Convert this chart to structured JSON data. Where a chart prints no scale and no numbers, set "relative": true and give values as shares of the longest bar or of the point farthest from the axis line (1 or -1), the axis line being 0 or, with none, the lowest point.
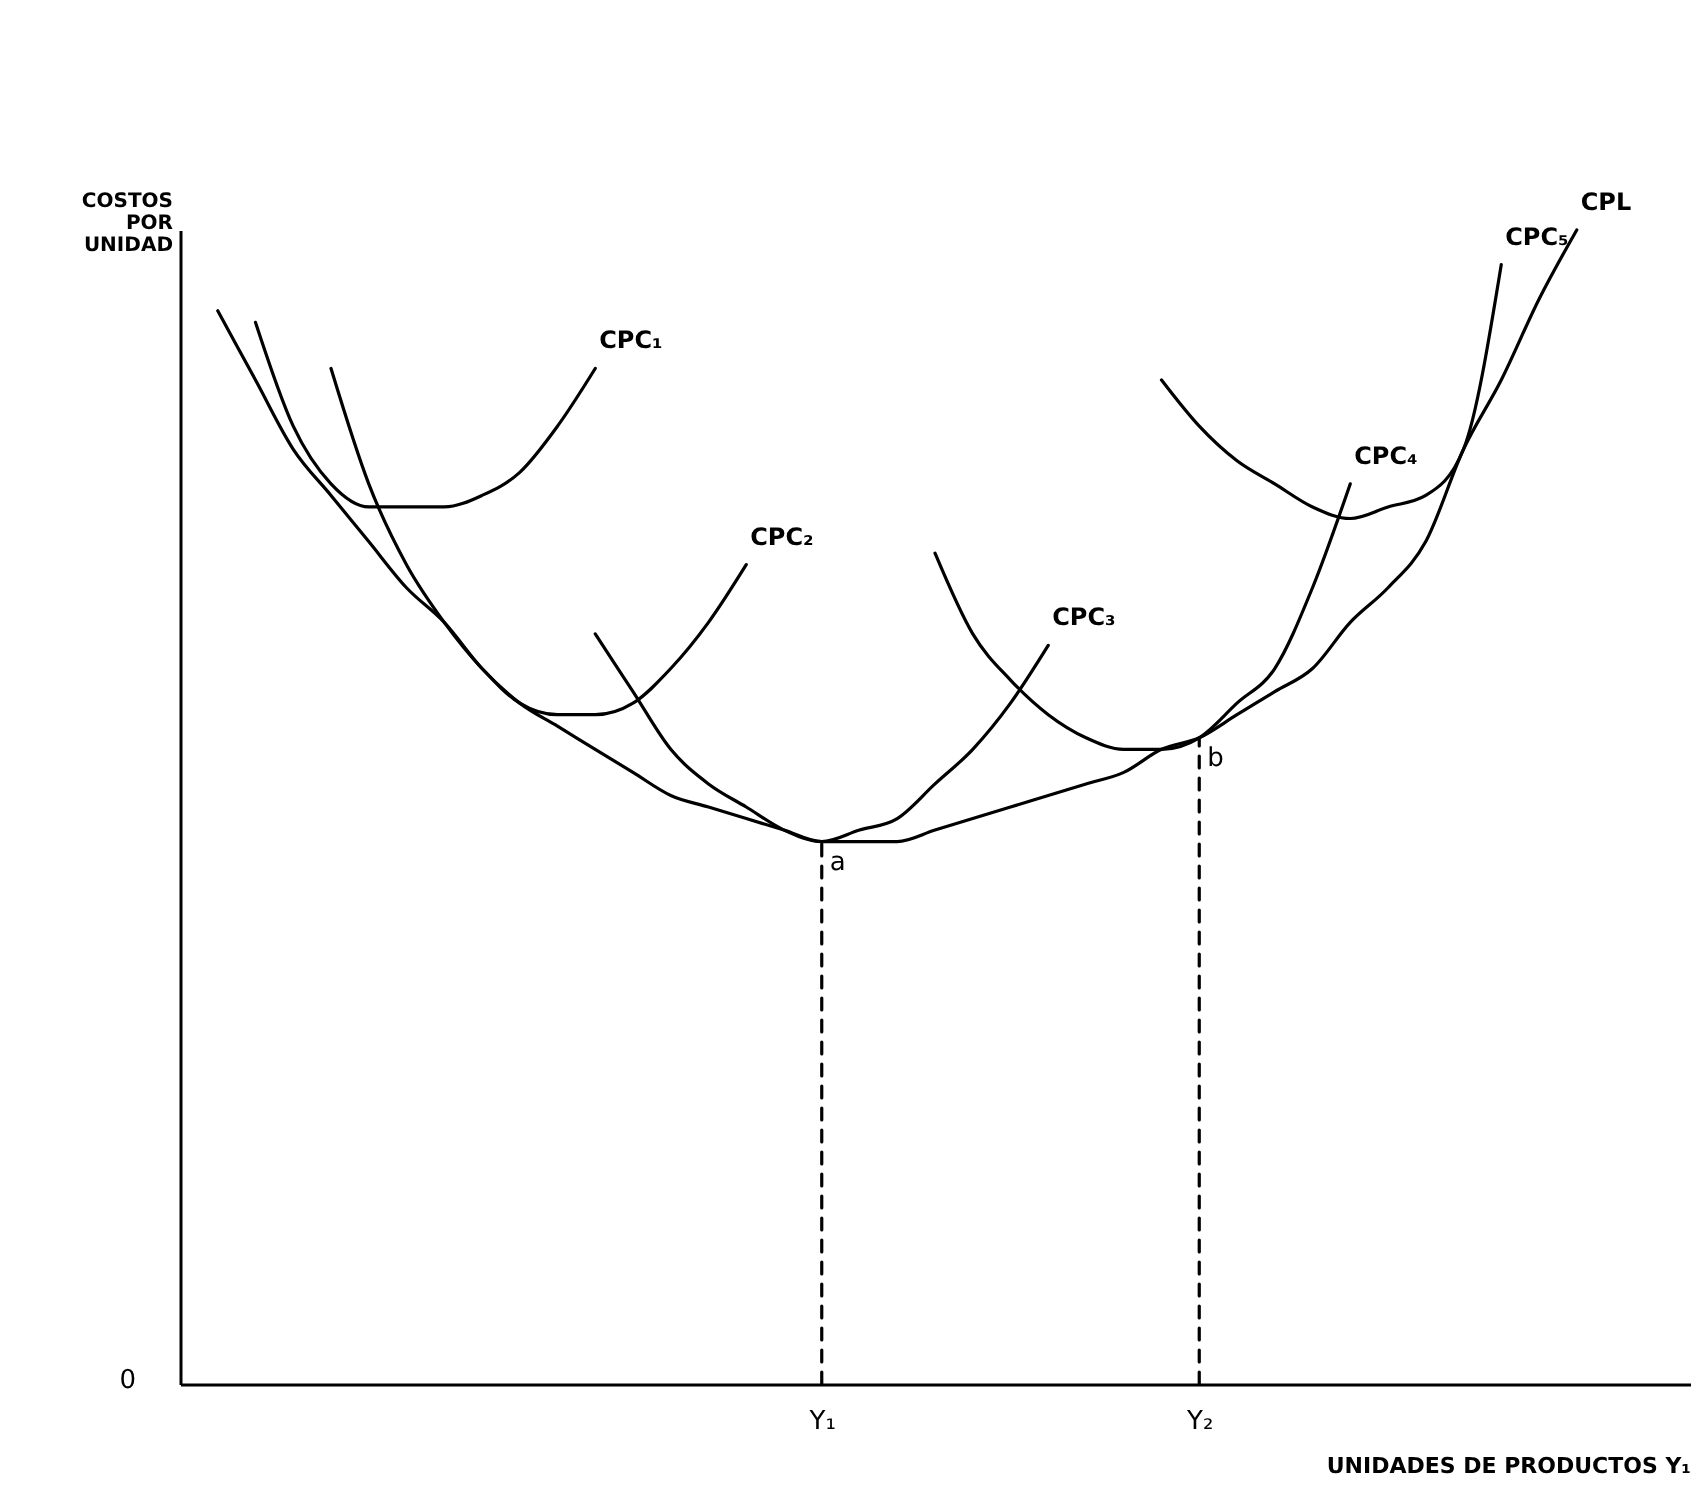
{
  "chart_data": {
    "type": "line",
    "relative": true,
    "xlabel": "UNIDADES DE PRODUCTOS Y₁",
    "ylabel": "COSTOS POR UNIDAD",
    "categories": [
      null,
      null,
      null,
      null,
      null,
      null,
      null,
      null,
      null,
      null,
      null,
      null,
      null,
      null,
      null,
      null,
      null,
      "Y₁",
      null,
      null,
      null,
      null,
      null,
      null,
      null,
      null,
      null,
      "Y₂",
      null,
      null,
      null,
      null,
      null,
      null,
      null,
      null,
      null,
      null,
      null,
      null,
      null
    ],
    "series": [
      {
        "name": "CPL",
        "color": "#000000",
        "values": [
          null,
          0.93,
          0.87,
          0.81,
          0.77,
          0.73,
          0.69,
          0.66,
          0.62,
          0.59,
          0.57,
          0.55,
          0.53,
          0.51,
          0.5,
          0.49,
          0.48,
          0.47,
          0.47,
          0.47,
          0.48,
          0.49,
          0.5,
          0.51,
          0.52,
          0.53,
          0.55,
          0.56,
          0.58,
          0.6,
          0.62,
          0.66,
          0.69,
          0.73,
          0.81,
          0.87,
          0.94,
          1,
          null,
          null,
          null
        ]
      },
      {
        "name": "CPC₁",
        "color": "#000000",
        "values": [
          null,
          null,
          0.92,
          0.83,
          0.78,
          0.76,
          0.76,
          0.76,
          0.77,
          0.79,
          0.83,
          0.88,
          null,
          null,
          null,
          null,
          null,
          null,
          null,
          null,
          null,
          null,
          null,
          null,
          null,
          null,
          null,
          null,
          null,
          null,
          null,
          null,
          null,
          null,
          null,
          null,
          null,
          null,
          null,
          null,
          null
        ]
      },
      {
        "name": "CPC₂",
        "color": "#000000",
        "values": [
          null,
          null,
          null,
          null,
          0.88,
          0.78,
          0.71,
          0.66,
          0.62,
          0.59,
          0.58,
          0.58,
          0.59,
          0.62,
          0.66,
          0.71,
          null,
          null,
          null,
          null,
          null,
          null,
          null,
          null,
          null,
          null,
          null,
          null,
          null,
          null,
          null,
          null,
          null,
          null,
          null,
          null,
          null,
          null,
          null,
          null,
          null
        ]
      },
      {
        "name": "CPC₃",
        "color": "#000000",
        "values": [
          null,
          null,
          null,
          null,
          null,
          null,
          null,
          null,
          null,
          null,
          null,
          0.65,
          0.6,
          0.55,
          0.52,
          0.5,
          0.48,
          0.47,
          0.48,
          0.49,
          0.52,
          0.55,
          0.59,
          0.64,
          null,
          null,
          null,
          null,
          null,
          null,
          null,
          null,
          null,
          null,
          null,
          null,
          null,
          null,
          null,
          null,
          null
        ]
      },
      {
        "name": "CPC₄",
        "color": "#000000",
        "values": [
          null,
          null,
          null,
          null,
          null,
          null,
          null,
          null,
          null,
          null,
          null,
          null,
          null,
          null,
          null,
          null,
          null,
          null,
          null,
          null,
          0.72,
          0.65,
          0.61,
          0.58,
          0.56,
          0.55,
          0.55,
          0.56,
          0.59,
          0.62,
          0.69,
          0.78,
          null,
          null,
          null,
          null,
          null,
          null,
          null,
          null,
          null
        ]
      },
      {
        "name": "CPC₅",
        "color": "#000000",
        "values": [
          null,
          null,
          null,
          null,
          null,
          null,
          null,
          null,
          null,
          null,
          null,
          null,
          null,
          null,
          null,
          null,
          null,
          null,
          null,
          null,
          null,
          null,
          null,
          null,
          null,
          null,
          0.87,
          0.83,
          0.8,
          0.78,
          0.76,
          0.75,
          0.76,
          0.77,
          0.81,
          0.97,
          null,
          null,
          null,
          null,
          null
        ]
      },
      {
        "color": "#000000",
        "line_style": "dashed",
        "x": [
          "Y₁",
          "Y₁"
        ],
        "values": [
          0,
          0.47
        ]
      },
      {
        "color": "#000000",
        "line_style": "dashed",
        "x": [
          "Y₂",
          "Y₂"
        ],
        "values": [
          0,
          0.56
        ]
      }
    ],
    "annotations": [
      {
        "text": "a",
        "x": "Y₁",
        "y": 0.47
      },
      {
        "text": "b",
        "x": "Y₂",
        "y": 0.56
      },
      "0"
    ]
  }
}
